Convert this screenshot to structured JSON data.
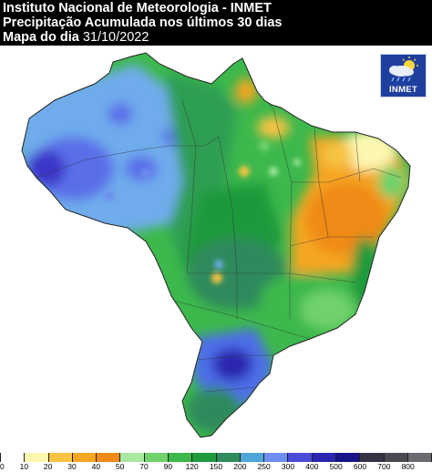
{
  "header": {
    "line1": "Instituto Nacional de Meteorologia - INMET",
    "line2": "Precipitação Acumulada nos últimos 30 dias",
    "line3_prefix": "Mapa do dia ",
    "line3_date": "31/10/2022"
  },
  "logo": {
    "text": "INMET",
    "icon": "sun-cloud-rain-icon"
  },
  "legend": {
    "values": [
      "0",
      "10",
      "20",
      "30",
      "40",
      "50",
      "70",
      "90",
      "120",
      "150",
      "200",
      "250",
      "300",
      "400",
      "500",
      "600",
      "700",
      "800"
    ],
    "colors": [
      "#ffffff",
      "#fdf7b0",
      "#f6c342",
      "#f5a623",
      "#ef8b16",
      "#a8e8a0",
      "#6fd26b",
      "#3cb84c",
      "#1f9a3a",
      "#2f8a5c",
      "#4ea6d6",
      "#6e8ff0",
      "#4b4bd8",
      "#2a26b0",
      "#18148a",
      "#333344",
      "#4a4a52",
      "#6a6a70"
    ]
  },
  "colors": {
    "ocean": "#ffffff",
    "land_base": "#3cb84c",
    "border": "#333333"
  }
}
